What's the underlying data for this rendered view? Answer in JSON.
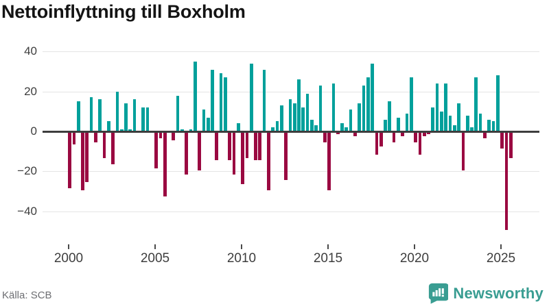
{
  "title": "Nettoinflyttning till Boxholm",
  "source": "Källa: SCB",
  "branding": {
    "name": "Newsworthy",
    "color": "#399d92",
    "icon": "newsworthy-speech-bubble-chart-icon"
  },
  "chart_data": {
    "type": "bar",
    "title": "Nettoinflyttning till Boxholm",
    "frequency": "quarterly",
    "start": "2000 Q1",
    "end": "2025 Q3",
    "grid": "horizontal",
    "legend": "none",
    "positive_color": "#00a09b",
    "negative_color": "#9a0941",
    "axis_color": "#3d3d3d",
    "ylim": [
      -52,
      42
    ],
    "y_ticks": [
      40,
      20,
      0,
      -20,
      -40
    ],
    "y_tick_labels": [
      "40",
      "20",
      "0",
      "−20",
      "−40"
    ],
    "x_tick_years": [
      2000,
      2005,
      2010,
      2015,
      2020,
      2025
    ],
    "x_tick_labels": [
      "2000",
      "2005",
      "2010",
      "2015",
      "2020",
      "2025"
    ],
    "categories": [
      "2000Q1",
      "2000Q2",
      "2000Q3",
      "2000Q4",
      "2001Q1",
      "2001Q2",
      "2001Q3",
      "2001Q4",
      "2002Q1",
      "2002Q2",
      "2002Q3",
      "2002Q4",
      "2003Q1",
      "2003Q2",
      "2003Q3",
      "2003Q4",
      "2004Q1",
      "2004Q2",
      "2004Q3",
      "2004Q4",
      "2005Q1",
      "2005Q2",
      "2005Q3",
      "2005Q4",
      "2006Q1",
      "2006Q2",
      "2006Q3",
      "2006Q4",
      "2007Q1",
      "2007Q2",
      "2007Q3",
      "2007Q4",
      "2008Q1",
      "2008Q2",
      "2008Q3",
      "2008Q4",
      "2009Q1",
      "2009Q2",
      "2009Q3",
      "2009Q4",
      "2010Q1",
      "2010Q2",
      "2010Q3",
      "2010Q4",
      "2011Q1",
      "2011Q2",
      "2011Q3",
      "2011Q4",
      "2012Q1",
      "2012Q2",
      "2012Q3",
      "2012Q4",
      "2013Q1",
      "2013Q2",
      "2013Q3",
      "2013Q4",
      "2014Q1",
      "2014Q2",
      "2014Q3",
      "2014Q4",
      "2015Q1",
      "2015Q2",
      "2015Q3",
      "2015Q4",
      "2016Q1",
      "2016Q2",
      "2016Q3",
      "2016Q4",
      "2017Q1",
      "2017Q2",
      "2017Q3",
      "2017Q4",
      "2018Q1",
      "2018Q2",
      "2018Q3",
      "2018Q4",
      "2019Q1",
      "2019Q2",
      "2019Q3",
      "2019Q4",
      "2020Q1",
      "2020Q2",
      "2020Q3",
      "2020Q4",
      "2021Q1",
      "2021Q2",
      "2021Q3",
      "2021Q4",
      "2022Q1",
      "2022Q2",
      "2022Q3",
      "2022Q4",
      "2023Q1",
      "2023Q2",
      "2023Q3",
      "2023Q4",
      "2024Q1",
      "2024Q2",
      "2024Q3",
      "2024Q4",
      "2025Q1",
      "2025Q2",
      "2025Q3"
    ],
    "values": [
      -28,
      -6,
      15,
      -29,
      -25,
      17,
      -5,
      16,
      -13,
      5,
      -16,
      20,
      1,
      14,
      1,
      16,
      0,
      12,
      12,
      0,
      -18,
      -3,
      -32,
      0,
      -4,
      18,
      1,
      -21,
      1,
      35,
      -19,
      11,
      7,
      31,
      -14,
      29,
      27,
      -14,
      -21,
      4,
      -26,
      -13,
      34,
      -14,
      -14,
      31,
      -29,
      2,
      5,
      13,
      -24,
      16,
      14,
      26,
      12,
      19,
      6,
      3,
      23,
      -5,
      -29,
      24,
      -1,
      4,
      2,
      11,
      -2,
      14,
      23,
      27,
      34,
      -11,
      -7,
      6,
      15,
      -5,
      7,
      -2,
      9,
      27,
      -5,
      -11,
      -2,
      -1,
      12,
      24,
      10,
      24,
      8,
      3,
      14,
      -19,
      8,
      2,
      27,
      9,
      -3,
      6,
      5,
      28,
      -8,
      -49,
      -13
    ]
  }
}
